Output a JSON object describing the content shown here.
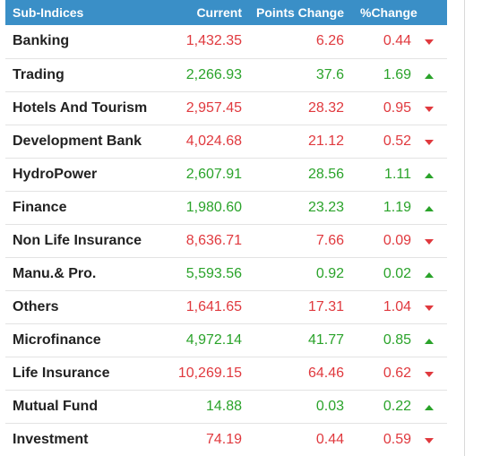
{
  "table": {
    "headers": {
      "name": "Sub-Indices",
      "current": "Current",
      "points_change": "Points Change",
      "pct_change": "%Change"
    },
    "colors": {
      "up": "#2aa32a",
      "down": "#e0393e",
      "header_bg": "#3a8fc7"
    },
    "rows": [
      {
        "name": "Banking",
        "current": "1,432.35",
        "points": "6.26",
        "pct": "0.44",
        "direction": "down"
      },
      {
        "name": "Trading",
        "current": "2,266.93",
        "points": "37.6",
        "pct": "1.69",
        "direction": "up"
      },
      {
        "name": "Hotels And Tourism",
        "current": "2,957.45",
        "points": "28.32",
        "pct": "0.95",
        "direction": "down"
      },
      {
        "name": "Development Bank",
        "current": "4,024.68",
        "points": "21.12",
        "pct": "0.52",
        "direction": "down"
      },
      {
        "name": "HydroPower",
        "current": "2,607.91",
        "points": "28.56",
        "pct": "1.11",
        "direction": "up"
      },
      {
        "name": "Finance",
        "current": "1,980.60",
        "points": "23.23",
        "pct": "1.19",
        "direction": "up"
      },
      {
        "name": "Non Life Insurance",
        "current": "8,636.71",
        "points": "7.66",
        "pct": "0.09",
        "direction": "down"
      },
      {
        "name": "Manu.& Pro.",
        "current": "5,593.56",
        "points": "0.92",
        "pct": "0.02",
        "direction": "up"
      },
      {
        "name": "Others",
        "current": "1,641.65",
        "points": "17.31",
        "pct": "1.04",
        "direction": "down"
      },
      {
        "name": "Microfinance",
        "current": "4,972.14",
        "points": "41.77",
        "pct": "0.85",
        "direction": "up"
      },
      {
        "name": "Life Insurance",
        "current": "10,269.15",
        "points": "64.46",
        "pct": "0.62",
        "direction": "down"
      },
      {
        "name": "Mutual Fund",
        "current": "14.88",
        "points": "0.03",
        "pct": "0.22",
        "direction": "up"
      },
      {
        "name": "Investment",
        "current": "74.19",
        "points": "0.44",
        "pct": "0.59",
        "direction": "down"
      }
    ]
  }
}
